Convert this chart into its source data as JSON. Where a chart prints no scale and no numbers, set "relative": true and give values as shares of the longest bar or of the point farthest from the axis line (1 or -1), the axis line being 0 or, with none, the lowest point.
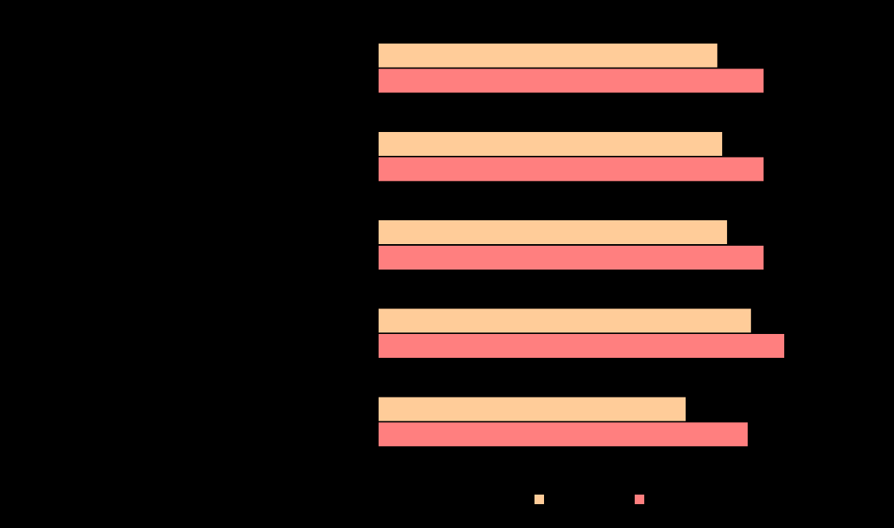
{
  "chart_data": {
    "type": "bar",
    "orientation": "horizontal",
    "relative": true,
    "categories": [
      null,
      null,
      null,
      null,
      null
    ],
    "series": [
      {
        "color": "#ffcc99",
        "values": [
          0.835,
          0.847,
          0.859,
          0.918,
          0.757
        ]
      },
      {
        "color": "#ff7f7f",
        "values": [
          0.949,
          0.949,
          0.949,
          1,
          0.91
        ]
      }
    ]
  }
}
